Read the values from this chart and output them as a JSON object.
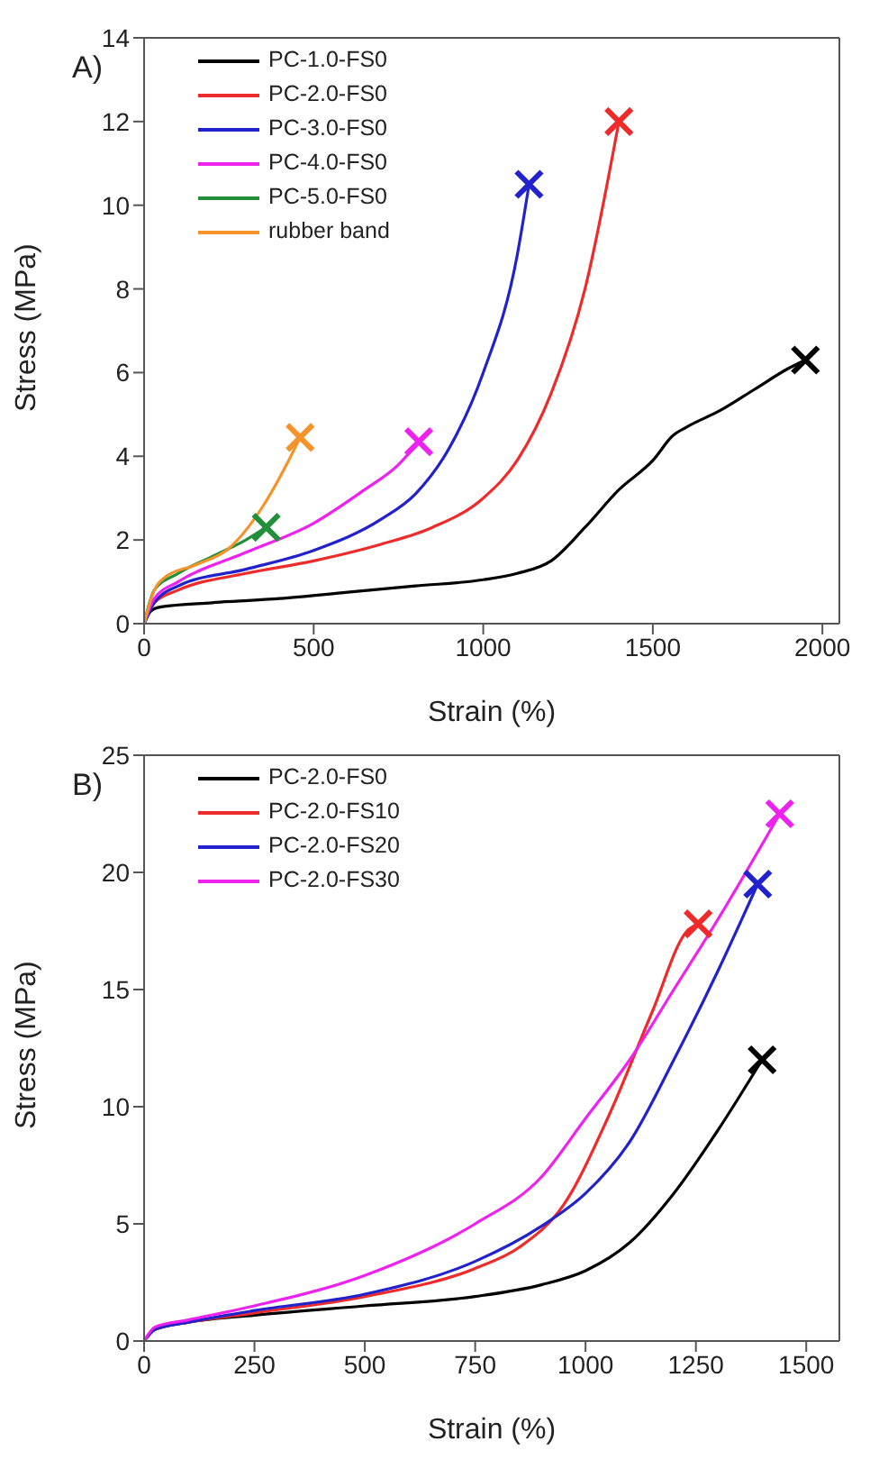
{
  "chart_data": [
    {
      "type": "line",
      "annotations": [
        "A)"
      ],
      "xlabel": "Strain (%)",
      "ylabel": "Stress (MPa)",
      "xlim": [
        0,
        2050
      ],
      "xticks": [
        0,
        500,
        1000,
        1500,
        2000
      ],
      "ylim": [
        0,
        14
      ],
      "yticks": [
        0,
        2,
        4,
        6,
        8,
        10,
        12,
        14
      ],
      "grid": false,
      "legend": "top left",
      "marker": "none",
      "line_style": "solid",
      "series": [
        {
          "name": "PC-1.0-FS0",
          "color": "#000000",
          "x": [
            0,
            20,
            50,
            200,
            400,
            600,
            800,
            1000,
            1100,
            1200,
            1300,
            1400,
            1500,
            1560,
            1600,
            1700,
            1800,
            1900,
            1950
          ],
          "values": [
            0,
            0.3,
            0.4,
            0.5,
            0.6,
            0.75,
            0.9,
            1.05,
            1.2,
            1.5,
            2.3,
            3.2,
            3.9,
            4.5,
            4.7,
            5.1,
            5.6,
            6.1,
            6.3
          ]
        },
        {
          "name": "PC-2.0-FS0",
          "color": "#ee2a2a",
          "x": [
            0,
            30,
            100,
            300,
            500,
            700,
            850,
            1000,
            1100,
            1200,
            1300,
            1400
          ],
          "values": [
            0,
            0.5,
            0.8,
            1.2,
            1.5,
            1.9,
            2.3,
            3.0,
            3.9,
            5.5,
            8,
            12
          ]
        },
        {
          "name": "PC-3.0-FS0",
          "color": "#2222cc",
          "x": [
            0,
            30,
            100,
            300,
            500,
            700,
            800,
            900,
            1000,
            1100,
            1135
          ],
          "values": [
            0,
            0.5,
            0.9,
            1.3,
            1.75,
            2.5,
            3.1,
            4.2,
            6,
            8.8,
            10.5
          ]
        },
        {
          "name": "PC-4.0-FS0",
          "color": "#ee22ee",
          "x": [
            0,
            30,
            100,
            300,
            500,
            650,
            750,
            810
          ],
          "values": [
            0,
            0.6,
            1.0,
            1.7,
            2.4,
            3.2,
            3.8,
            4.35
          ]
        },
        {
          "name": "PC-5.0-FS0",
          "color": "#22903a",
          "x": [
            0,
            30,
            100,
            200,
            300,
            360
          ],
          "values": [
            0,
            0.8,
            1.2,
            1.6,
            2.0,
            2.3
          ]
        },
        {
          "name": "rubber band",
          "color": "#f5932a",
          "x": [
            0,
            30,
            60,
            150,
            250,
            350,
            420,
            460
          ],
          "values": [
            0,
            0.8,
            1.1,
            1.4,
            1.8,
            2.8,
            3.8,
            4.45
          ]
        },
        {
          "type": "scatter",
          "marker": "cross",
          "color": "#000000",
          "x": [
            1950
          ],
          "values": [
            6.3
          ]
        },
        {
          "type": "scatter",
          "marker": "cross",
          "color": "#ee2a2a",
          "x": [
            1400
          ],
          "values": [
            12
          ]
        },
        {
          "type": "scatter",
          "marker": "cross",
          "color": "#2222cc",
          "x": [
            1135
          ],
          "values": [
            10.5
          ]
        },
        {
          "type": "scatter",
          "marker": "cross",
          "color": "#ee22ee",
          "x": [
            810
          ],
          "values": [
            4.35
          ]
        },
        {
          "type": "scatter",
          "marker": "cross",
          "color": "#22903a",
          "x": [
            360
          ],
          "values": [
            2.3
          ]
        },
        {
          "type": "scatter",
          "marker": "cross",
          "color": "#f5932a",
          "x": [
            460
          ],
          "values": [
            4.45
          ]
        }
      ]
    },
    {
      "type": "line",
      "annotations": [
        "B)"
      ],
      "xlabel": "Strain (%)",
      "ylabel": "Stress (MPa)",
      "xlim": [
        0,
        1575
      ],
      "xticks": [
        0,
        250,
        500,
        750,
        1000,
        1250,
        1500
      ],
      "ylim": [
        0,
        25
      ],
      "yticks": [
        0,
        5,
        10,
        15,
        20,
        25
      ],
      "grid": false,
      "legend": "top left",
      "marker": "none",
      "line_style": "solid",
      "series": [
        {
          "name": "PC-2.0-FS0",
          "color": "#000000",
          "x": [
            0,
            25,
            100,
            250,
            500,
            750,
            900,
            1000,
            1100,
            1200,
            1300,
            1400
          ],
          "values": [
            0,
            0.5,
            0.8,
            1.1,
            1.5,
            1.9,
            2.4,
            3.0,
            4.2,
            6.3,
            9,
            12
          ]
        },
        {
          "name": "PC-2.0-FS10",
          "color": "#ee2a2a",
          "x": [
            0,
            25,
            100,
            250,
            500,
            750,
            850,
            950,
            1050,
            1150,
            1230,
            1255
          ],
          "values": [
            0,
            0.5,
            0.8,
            1.2,
            1.9,
            3.1,
            4.0,
            5.8,
            9.5,
            14,
            17.5,
            17.8
          ]
        },
        {
          "name": "PC-2.0-FS20",
          "color": "#2222cc",
          "x": [
            0,
            25,
            100,
            250,
            500,
            750,
            900,
            1000,
            1100,
            1200,
            1300,
            1390
          ],
          "values": [
            0,
            0.5,
            0.8,
            1.3,
            2.0,
            3.4,
            4.9,
            6.3,
            8.5,
            12,
            15.8,
            19.5
          ]
        },
        {
          "name": "PC-2.0-FS30",
          "color": "#ee22ee",
          "x": [
            0,
            25,
            100,
            250,
            500,
            750,
            900,
            1000,
            1100,
            1200,
            1300,
            1440
          ],
          "values": [
            0,
            0.6,
            0.9,
            1.5,
            2.8,
            5.0,
            7.0,
            9.5,
            12,
            15,
            18,
            22.5
          ]
        },
        {
          "type": "scatter",
          "marker": "cross",
          "color": "#000000",
          "x": [
            1400
          ],
          "values": [
            12
          ]
        },
        {
          "type": "scatter",
          "marker": "cross",
          "color": "#ee2a2a",
          "x": [
            1255
          ],
          "values": [
            17.8
          ]
        },
        {
          "type": "scatter",
          "marker": "cross",
          "color": "#2222cc",
          "x": [
            1390
          ],
          "values": [
            19.5
          ]
        },
        {
          "type": "scatter",
          "marker": "cross",
          "color": "#ee22ee",
          "x": [
            1440
          ],
          "values": [
            22.5
          ]
        }
      ]
    }
  ]
}
